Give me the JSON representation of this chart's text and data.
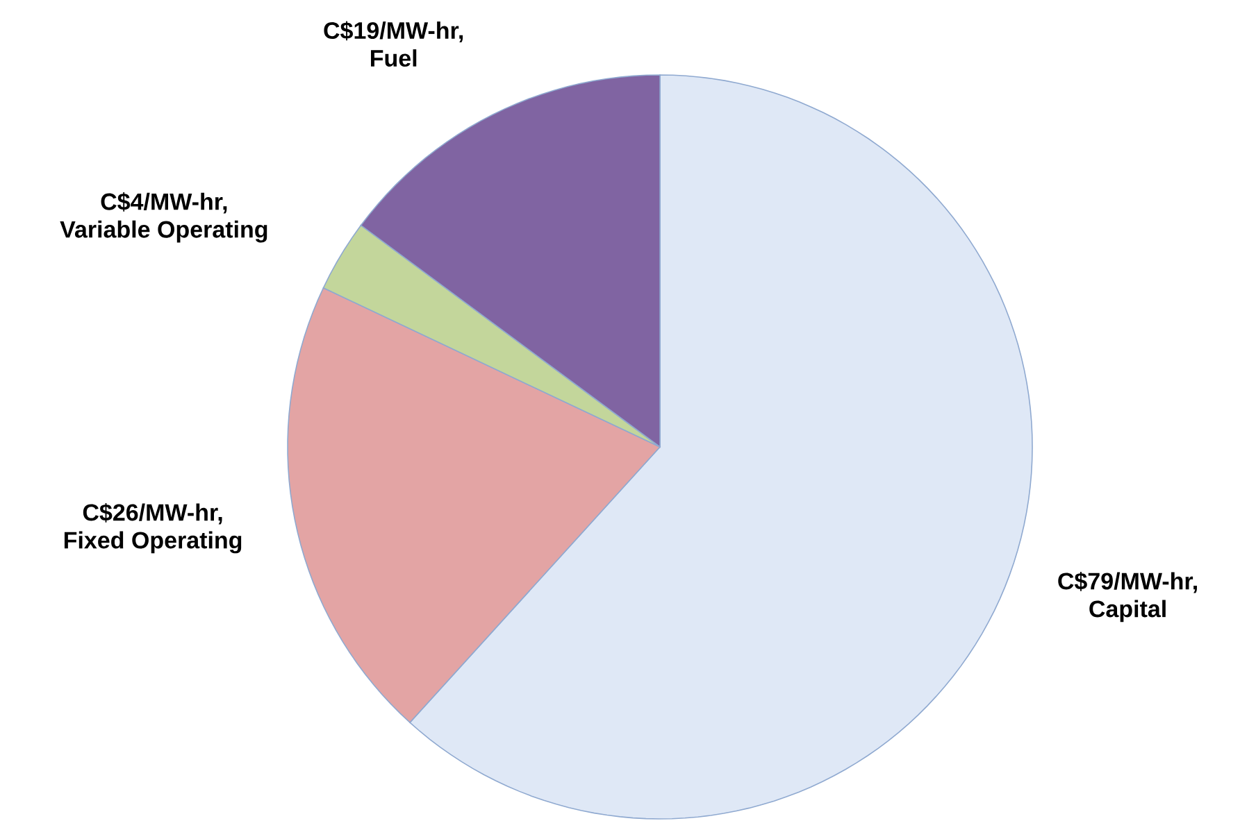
{
  "chart_data": {
    "type": "pie",
    "categories": [
      "Capital",
      "Fixed Operating",
      "Variable Operating",
      "Fuel"
    ],
    "values": [
      79,
      26,
      4,
      19
    ],
    "value_labels": [
      "C$79/MW-hr,",
      "C$26/MW-hr,",
      "C$4/MW-hr,",
      "C$19/MW-hr,"
    ],
    "colors": [
      "#dfe8f6",
      "#e3a4a4",
      "#c3d69b",
      "#8064a2"
    ]
  }
}
